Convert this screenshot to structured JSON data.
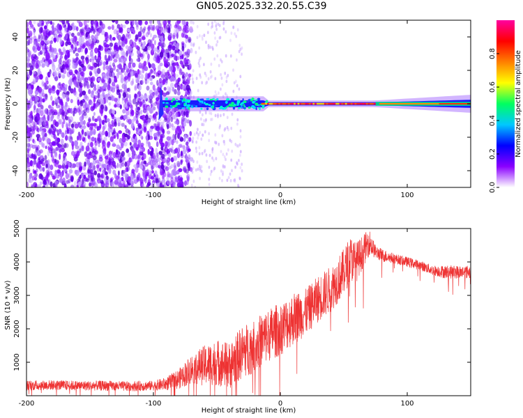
{
  "title": "GN05.2025.332.20.55.C39",
  "chart_data": [
    {
      "type": "heatmap",
      "name": "spectrogram",
      "xlabel": "Height of straight line (km)",
      "ylabel": "Frequency (Hz)",
      "xlim": [
        -200,
        150
      ],
      "ylim": [
        -50,
        50
      ],
      "xticks": [
        -200,
        -100,
        0,
        100
      ],
      "yticks": [
        -40,
        -20,
        0,
        20,
        40
      ],
      "colorbar": {
        "label": "Normalized spectral amplitude",
        "range": [
          0,
          1
        ],
        "ticks": [
          0.0,
          0.2,
          0.4,
          0.6,
          0.8
        ],
        "tick_labels": [
          "0.0",
          "0.2",
          "0.4",
          "0.6",
          "0.8"
        ],
        "colormap": [
          "#ffffff",
          "#8a00ff",
          "#0000ff",
          "#00c8ff",
          "#00ff60",
          "#ffff00",
          "#ff8000",
          "#ff0000",
          "#ff00a0"
        ]
      },
      "features": {
        "noise_region_x": [
          -200,
          -70
        ],
        "sparse_noise_x": [
          -70,
          -30
        ],
        "signal_line_freq_hz": 0,
        "signal_start_x": -95,
        "strong_signal_x": [
          -15,
          75
        ]
      }
    },
    {
      "type": "line",
      "name": "snr",
      "xlabel": "Height of straight line (km)",
      "ylabel": "SNR (10 * v/v)",
      "xlim": [
        -200,
        150
      ],
      "ylim": [
        0,
        5000
      ],
      "xticks": [
        -200,
        -100,
        0,
        100
      ],
      "yticks": [
        1000,
        2000,
        3000,
        4000,
        5000
      ],
      "color": "#ee3333",
      "series": [
        {
          "x": [
            -200,
            -180,
            -160,
            -140,
            -120,
            -100,
            -90,
            -80,
            -70,
            -60,
            -50,
            -40,
            -30,
            -20,
            -10,
            0,
            10,
            20,
            30,
            40,
            50,
            55,
            60,
            65,
            70,
            75,
            80,
            90,
            100,
            110,
            120,
            130,
            140,
            150
          ],
          "y": [
            300,
            320,
            300,
            300,
            280,
            300,
            350,
            500,
            800,
            900,
            1000,
            900,
            1300,
            1500,
            1800,
            2000,
            2300,
            2500,
            2900,
            3200,
            3700,
            4100,
            4000,
            4300,
            4600,
            4300,
            4200,
            4100,
            4000,
            3900,
            3750,
            3700,
            3700,
            3700
          ],
          "noise": [
            150,
            150,
            150,
            150,
            150,
            150,
            200,
            300,
            450,
            600,
            700,
            700,
            800,
            800,
            800,
            800,
            800,
            700,
            700,
            700,
            700,
            700,
            600,
            500,
            400,
            200,
            200,
            150,
            150,
            150,
            150,
            200,
            200,
            200
          ]
        }
      ]
    }
  ]
}
